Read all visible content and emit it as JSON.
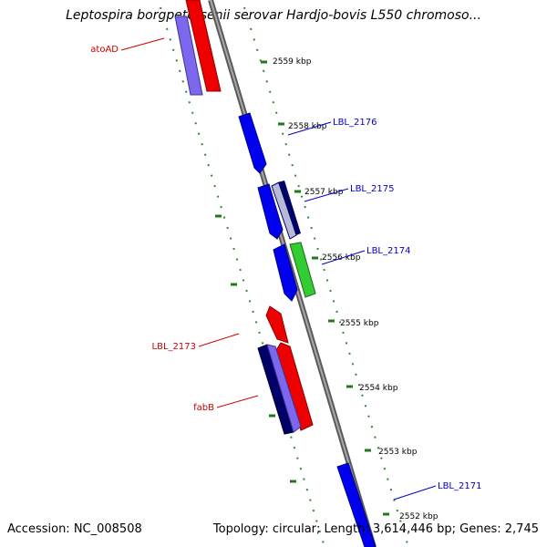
{
  "title": "Leptospira borgpetersenii serovar Hardjo-bovis L550 chromoso...",
  "footer": {
    "accession": "Accession: NC_008508",
    "topology": "Topology: circular; Length: 3,614,446 bp; Genes: 2,745"
  },
  "colors": {
    "forward_strand_label": "#0000cc",
    "reverse_strand_label": "#cc0000",
    "backbone": "#808080",
    "tick_marks": "#2e8b2e",
    "gene_blue": "#0000ee",
    "gene_red": "#ee0000",
    "gene_green": "#33cc33",
    "gene_navy": "#000066",
    "gene_slate": "#6a5acd"
  },
  "scale_labels": [
    "2559 kbp",
    "2558 kbp",
    "2557 kbp",
    "2556 kbp",
    "2555 kbp",
    "2554 kbp",
    "2553 kbp",
    "2552 kbp"
  ],
  "gene_labels": {
    "forward": [
      "LBL_2176",
      "LBL_2175",
      "LBL_2174",
      "LBL_2171"
    ],
    "reverse": [
      "atoAD",
      "LBL_2173",
      "fabB"
    ]
  }
}
